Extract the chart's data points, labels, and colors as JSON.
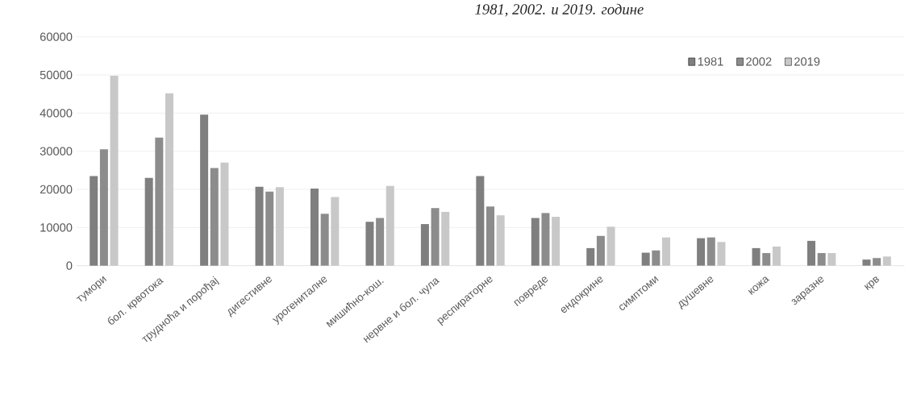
{
  "chart_data": {
    "type": "bar",
    "title": "1981, 2002. и 2019. године",
    "categories": [
      "тумори",
      "бол. крвотока",
      "трудноћа и порођај",
      "дигестивне",
      "урогениталне",
      "мишићно-кош.",
      "нервне и бол. чула",
      "респираторне",
      "повреде",
      "ендокрине",
      "симптоми",
      "душевне",
      "кожа",
      "заразне",
      "крв"
    ],
    "series": [
      {
        "name": "1981",
        "color": "#7f7f7f",
        "values": [
          23500,
          23000,
          39600,
          20700,
          20200,
          11500,
          10900,
          23500,
          12500,
          4600,
          3400,
          7200,
          4600,
          6500,
          1600
        ]
      },
      {
        "name": "2002",
        "color": "#8c8c8c",
        "values": [
          30500,
          33600,
          25600,
          19400,
          13600,
          12500,
          15100,
          15500,
          13800,
          7800,
          4000,
          7400,
          3300,
          3300,
          2000
        ]
      },
      {
        "name": "2019",
        "color": "#c8c8c8",
        "values": [
          49800,
          45200,
          27000,
          20600,
          18000,
          20900,
          14100,
          13200,
          12800,
          10200,
          7400,
          6200,
          5000,
          3300,
          2400
        ]
      }
    ],
    "ylim": [
      0,
      60000
    ],
    "yticks": [
      0,
      10000,
      20000,
      30000,
      40000,
      50000,
      60000
    ],
    "grid": "y",
    "legend": "top right"
  }
}
